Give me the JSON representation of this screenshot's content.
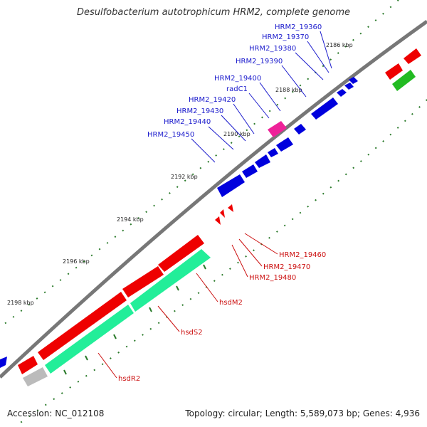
{
  "title": "Desulfobacterium autotrophicum HRM2, complete genome",
  "footer": {
    "accession": "Accession: NC_012108",
    "summary": "Topology: circular; Length: 5,589,073 bp; Genes: 4,936"
  },
  "kbp_labels": [
    "2186 kbp",
    "2188 kbp",
    "2190 kbp",
    "2192 kbp",
    "2194 kbp",
    "2196 kbp",
    "2198 kbp"
  ],
  "blue_genes": [
    "HRM2_19360",
    "HRM2_19370",
    "HRM2_19380",
    "HRM2_19390",
    "HRM2_19400",
    "radC1",
    "HRM2_19420",
    "HRM2_19430",
    "HRM2_19440",
    "HRM2_19450"
  ],
  "red_genes": [
    "HRM2_19460",
    "HRM2_19470",
    "HRM2_19480",
    "hsdM2",
    "hsdS2",
    "hsdR2"
  ],
  "colors": {
    "forward": "#0000dd",
    "reverse": "#ee0000",
    "rna": "#22ee99",
    "pink": "#ee2299",
    "green": "#22bb22",
    "gray": "#bbbbbb",
    "axis": "#777777"
  }
}
